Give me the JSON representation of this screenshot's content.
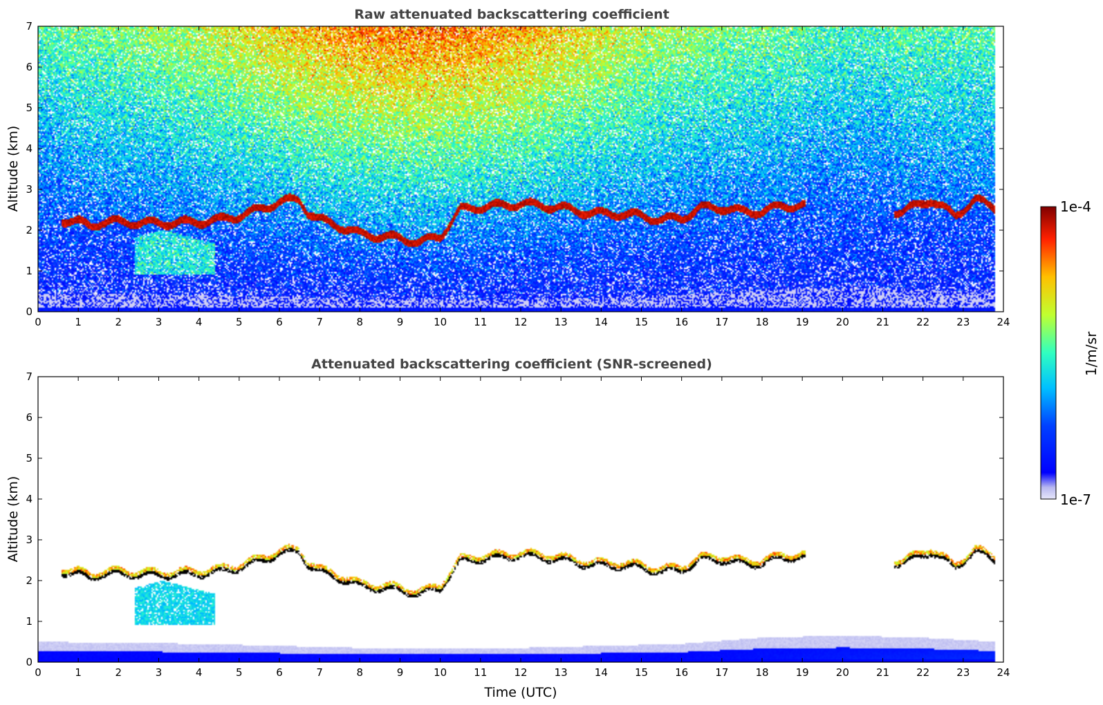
{
  "colors": {
    "colormap": "jet",
    "colormap_low": "#e6e6fa",
    "colormap_high": "#7f0000",
    "title_color": "#444444",
    "cloud_base_color": "#000000"
  },
  "colorbar": {
    "label": "1/m/sr",
    "min_label": "1e-7",
    "max_label": "1e-4",
    "scale": "log",
    "range": [
      1e-07,
      0.0001
    ]
  },
  "chart_data": [
    {
      "type": "heatmap",
      "title": "Raw attenuated backscattering coefficient",
      "xlabel": "",
      "ylabel": "Altitude (km)",
      "xlim": [
        0,
        24
      ],
      "ylim": [
        0,
        7
      ],
      "x_ticks": [
        "0",
        "1",
        "2",
        "3",
        "4",
        "5",
        "6",
        "7",
        "8",
        "9",
        "10",
        "11",
        "12",
        "13",
        "14",
        "15",
        "16",
        "17",
        "18",
        "19",
        "20",
        "21",
        "22",
        "23",
        "24"
      ],
      "y_ticks": [
        "0",
        "1",
        "2",
        "3",
        "4",
        "5",
        "6",
        "7"
      ],
      "data_extent_x": [
        0,
        23.8
      ],
      "cloud_layer_top_km": {
        "x": [
          0.6,
          1.0,
          1.3,
          1.6,
          2.0,
          2.8,
          3.4,
          4.0,
          4.5,
          5.0,
          5.5,
          6.0,
          6.5,
          6.7,
          7.0,
          7.5,
          8.0,
          8.5,
          9.0,
          9.5,
          10.0,
          10.5,
          11.0,
          11.5,
          12.0,
          12.5,
          13.0,
          13.5,
          14.0,
          14.5,
          15.0,
          15.5,
          16.0,
          16.5,
          17.0,
          17.5,
          18.0,
          18.5,
          19.0,
          21.5,
          22.2,
          22.8,
          23.3,
          23.8
        ],
        "y": [
          2.3,
          2.25,
          2.15,
          2.25,
          2.25,
          2.22,
          2.23,
          2.25,
          2.3,
          2.4,
          2.55,
          2.75,
          2.8,
          2.5,
          2.3,
          2.15,
          1.95,
          1.9,
          1.85,
          1.75,
          1.9,
          2.55,
          2.62,
          2.65,
          2.7,
          2.65,
          2.6,
          2.5,
          2.45,
          2.45,
          2.4,
          2.3,
          2.35,
          2.6,
          2.6,
          2.5,
          2.5,
          2.65,
          2.65,
          2.5,
          2.8,
          2.4,
          2.8,
          2.6
        ]
      },
      "low_cloud_region": {
        "x_range": [
          2.4,
          4.4
        ],
        "altitude_range_km": [
          0.9,
          2.0
        ]
      },
      "background_noise_trend": "high signal aloft between 7 and 16 UTC; near-surface aerosol layer thickening after 18 UTC"
    },
    {
      "type": "heatmap",
      "title": "Attenuated backscattering coefficient (SNR-screened)",
      "xlabel": "Time (UTC)",
      "ylabel": "Altitude (km)",
      "xlim": [
        0,
        24
      ],
      "ylim": [
        0,
        7
      ],
      "x_ticks": [
        "0",
        "1",
        "2",
        "3",
        "4",
        "5",
        "6",
        "7",
        "8",
        "9",
        "10",
        "11",
        "12",
        "13",
        "14",
        "15",
        "16",
        "17",
        "18",
        "19",
        "20",
        "21",
        "22",
        "23",
        "24"
      ],
      "y_ticks": [
        "0",
        "1",
        "2",
        "3",
        "4",
        "5",
        "6",
        "7"
      ],
      "data_extent_x": [
        0,
        23.8
      ],
      "screened": true,
      "surface_layer_top_km": {
        "x": [
          0,
          4,
          8,
          12,
          16,
          18,
          20,
          22,
          23.8
        ],
        "y": [
          0.5,
          0.45,
          0.35,
          0.35,
          0.45,
          0.6,
          0.65,
          0.6,
          0.5
        ]
      }
    }
  ]
}
